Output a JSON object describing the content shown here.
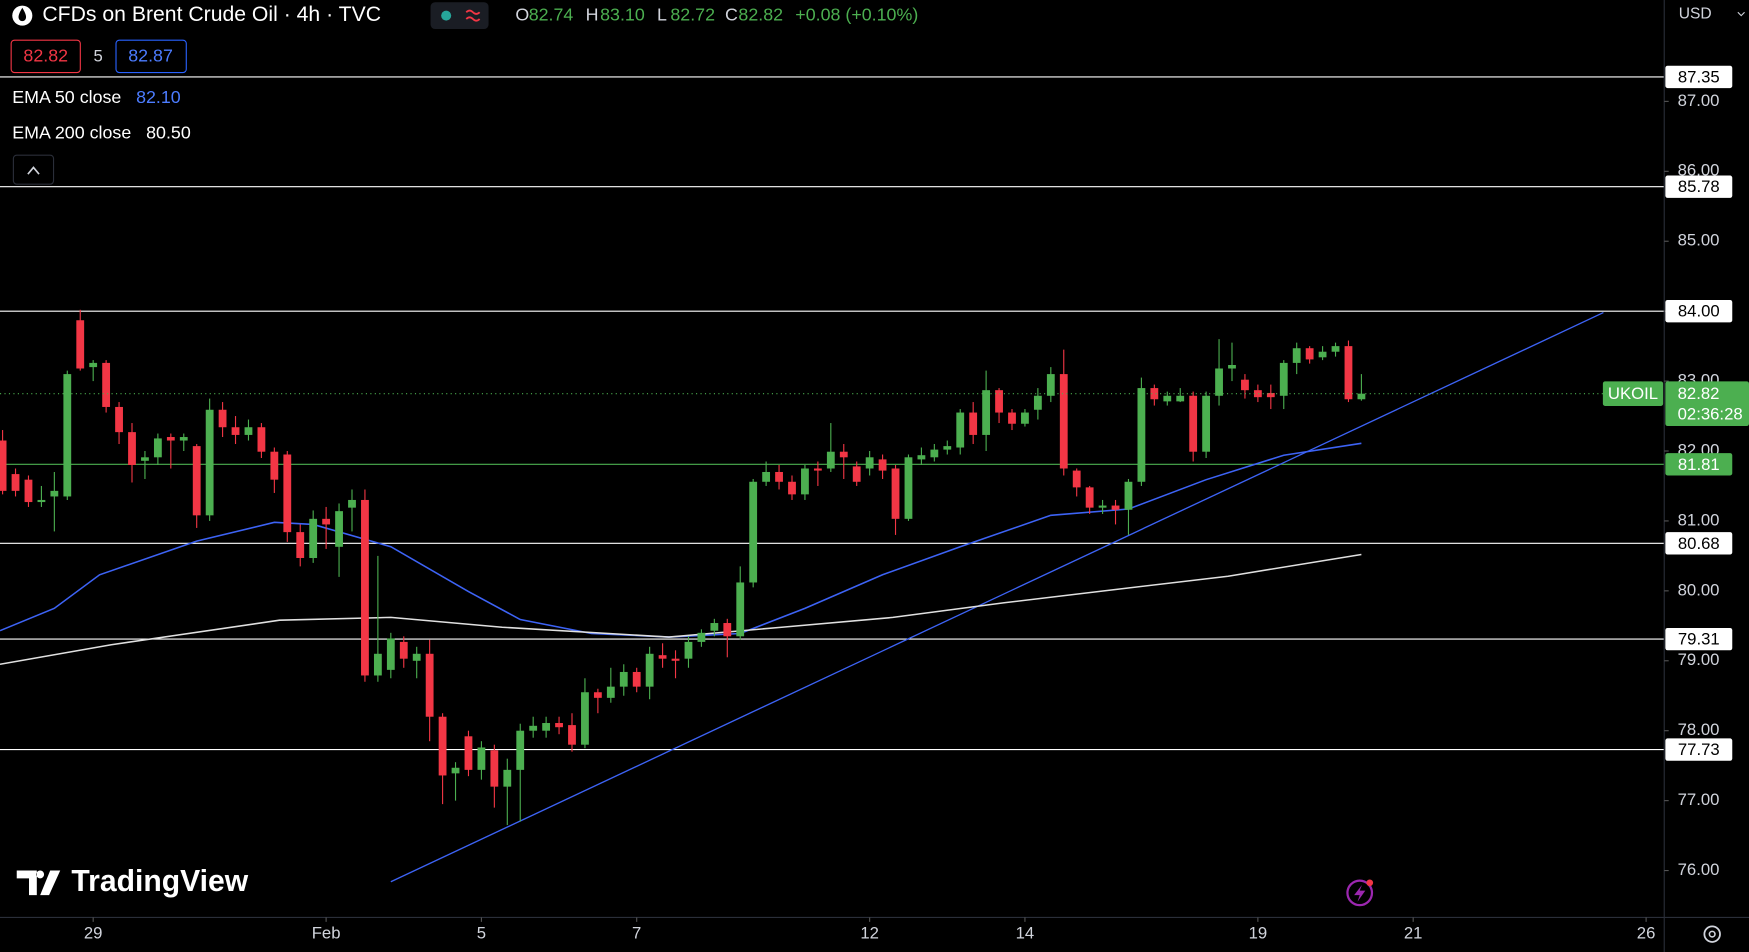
{
  "chart_data": {
    "type": "candlestick",
    "header": {
      "title": "CFDs on Brent Crude Oil · 4h · TVC",
      "ohlc_letters": [
        "O",
        "H",
        "L",
        "C"
      ],
      "ohlc": [
        "82.74",
        "83.10",
        "82.72",
        "82.82"
      ],
      "change": "+0.08 (+0.10%)"
    },
    "bid": "82.82",
    "spread": "5",
    "ask": "82.87",
    "currency": "USD",
    "watermark": "TradingView",
    "up_color": "#4caf50",
    "down_color": "#f23645",
    "x": [
      0,
      1,
      2,
      3,
      4,
      5,
      6,
      7,
      8,
      9,
      10,
      11,
      12,
      13,
      14,
      15,
      16,
      17,
      18,
      19,
      20,
      21,
      22,
      23,
      24,
      25,
      26,
      27,
      28,
      29,
      30,
      31,
      32,
      33,
      34,
      35,
      36,
      37,
      38,
      39,
      40,
      41,
      42,
      43,
      44,
      45,
      46,
      47,
      48,
      49,
      50,
      51,
      52,
      53,
      54,
      55,
      56,
      57,
      58,
      59,
      60,
      61,
      62,
      63,
      64,
      65,
      66,
      67,
      68,
      69,
      70,
      71,
      72,
      73,
      74,
      75,
      76,
      77,
      78,
      79,
      80,
      81,
      82,
      83,
      84,
      85,
      86,
      87,
      88,
      89,
      90,
      91,
      92,
      93,
      94,
      95,
      96,
      97,
      98,
      99,
      100,
      101,
      102,
      103,
      104,
      105
    ],
    "open": [
      82.15,
      81.67,
      81.59,
      81.27,
      81.35,
      81.35,
      83.87,
      83.2,
      83.26,
      82.63,
      82.27,
      81.86,
      81.91,
      82.2,
      82.15,
      82.07,
      81.08,
      82.59,
      82.34,
      82.23,
      82.34,
      81.99,
      81.95,
      80.84,
      80.47,
      81.03,
      80.63,
      81.19,
      81.3,
      78.79,
      78.87,
      79.27,
      79.0,
      79.1,
      78.2,
      77.39,
      77.92,
      77.44,
      77.72,
      77.2,
      77.44,
      78.0,
      78.0,
      78.11,
      78.08,
      77.8,
      78.55,
      78.47,
      78.63,
      78.84,
      78.63,
      79.08,
      79.03,
      79.03,
      79.27,
      79.43,
      79.54,
      79.35,
      80.12,
      81.56,
      81.7,
      81.56,
      81.38,
      81.75,
      81.75,
      81.99,
      81.78,
      81.75,
      81.88,
      81.75,
      81.03,
      81.88,
      81.91,
      82.02,
      82.05,
      82.55,
      82.23,
      82.87,
      82.55,
      82.39,
      82.59,
      82.79,
      83.1,
      81.72,
      81.48,
      81.19,
      81.22,
      81.16,
      81.56,
      82.9,
      82.71,
      82.71,
      82.79,
      81.99,
      82.79,
      83.18,
      83.02,
      82.87,
      82.83,
      82.79,
      83.26,
      83.47,
      83.34,
      83.42,
      83.5,
      82.74
    ],
    "high": [
      82.3,
      81.75,
      81.65,
      81.5,
      81.7,
      83.15,
      84.02,
      83.3,
      83.3,
      82.7,
      82.4,
      82.0,
      82.25,
      82.25,
      82.25,
      82.1,
      82.75,
      82.7,
      82.5,
      82.45,
      82.4,
      82.05,
      82.0,
      80.95,
      81.15,
      81.2,
      81.25,
      81.45,
      81.45,
      80.5,
      79.4,
      79.35,
      79.2,
      79.3,
      78.25,
      77.55,
      78.0,
      77.85,
      77.8,
      77.6,
      78.1,
      78.2,
      78.2,
      78.2,
      78.25,
      78.75,
      78.6,
      78.9,
      78.95,
      78.9,
      79.2,
      79.25,
      79.15,
      79.35,
      79.45,
      79.6,
      79.6,
      80.35,
      81.6,
      81.85,
      81.8,
      81.65,
      81.8,
      81.85,
      82.4,
      82.1,
      81.85,
      82.0,
      81.95,
      81.8,
      81.95,
      82.05,
      82.1,
      82.15,
      82.6,
      82.7,
      83.15,
      82.9,
      82.6,
      82.6,
      82.9,
      83.2,
      83.45,
      81.75,
      81.5,
      81.3,
      81.3,
      81.6,
      83.05,
      82.95,
      82.85,
      82.9,
      82.85,
      82.85,
      83.6,
      83.55,
      83.1,
      82.95,
      82.95,
      83.3,
      83.55,
      83.5,
      83.5,
      83.55,
      83.58,
      83.1
    ],
    "low": [
      81.38,
      81.35,
      81.2,
      81.2,
      80.85,
      81.3,
      83.15,
      83.0,
      82.55,
      82.1,
      81.55,
      81.6,
      81.8,
      81.75,
      82.0,
      80.9,
      81.0,
      82.2,
      82.1,
      82.15,
      81.9,
      81.4,
      80.7,
      80.35,
      80.4,
      80.6,
      80.2,
      80.85,
      78.7,
      78.7,
      78.75,
      78.9,
      78.75,
      77.85,
      76.95,
      77.0,
      77.35,
      77.3,
      76.9,
      76.65,
      76.7,
      77.9,
      77.9,
      77.95,
      77.7,
      77.75,
      78.25,
      78.4,
      78.5,
      78.55,
      78.45,
      78.9,
      78.75,
      78.9,
      79.2,
      79.35,
      79.05,
      79.3,
      80.05,
      81.5,
      81.45,
      81.3,
      81.3,
      81.5,
      81.7,
      81.6,
      81.5,
      81.65,
      81.6,
      80.8,
      81.0,
      81.8,
      81.85,
      81.95,
      81.95,
      82.1,
      82.0,
      82.4,
      82.3,
      82.35,
      82.45,
      82.7,
      81.65,
      81.35,
      81.1,
      81.1,
      80.95,
      80.8,
      81.5,
      82.65,
      82.65,
      82.7,
      81.85,
      81.9,
      82.65,
      83.0,
      82.75,
      82.7,
      82.6,
      82.6,
      83.1,
      83.25,
      83.3,
      83.35,
      82.7,
      82.72
    ],
    "close": [
      81.43,
      81.43,
      81.27,
      81.3,
      81.43,
      83.1,
      83.18,
      83.26,
      82.63,
      82.27,
      81.8,
      81.91,
      82.18,
      82.15,
      82.2,
      81.08,
      82.59,
      82.34,
      82.23,
      82.34,
      81.99,
      81.59,
      80.84,
      80.47,
      81.03,
      80.95,
      81.14,
      81.3,
      78.79,
      79.1,
      79.32,
      79.03,
      79.1,
      78.2,
      77.36,
      77.47,
      77.44,
      77.76,
      77.2,
      77.44,
      78.0,
      78.07,
      78.11,
      78.05,
      77.8,
      78.55,
      78.47,
      78.63,
      78.84,
      78.63,
      79.1,
      79.03,
      79.0,
      79.27,
      79.4,
      79.54,
      79.35,
      80.12,
      81.56,
      81.7,
      81.56,
      81.38,
      81.75,
      81.72,
      81.99,
      81.91,
      81.56,
      81.91,
      81.72,
      81.03,
      81.91,
      81.94,
      82.02,
      82.07,
      82.55,
      82.23,
      82.87,
      82.55,
      82.39,
      82.55,
      82.79,
      83.1,
      81.75,
      81.48,
      81.19,
      81.22,
      81.16,
      81.56,
      82.9,
      82.74,
      82.79,
      82.79,
      81.99,
      82.79,
      83.18,
      83.23,
      82.87,
      82.77,
      82.77,
      83.26,
      83.47,
      83.31,
      83.42,
      83.5,
      82.74,
      82.82
    ],
    "lines": [
      {
        "name": "EMA 50 close",
        "last": "82.10",
        "color": "#3d63f5",
        "x": [
          -0.2,
          4,
          7.5,
          15,
          21,
          24,
          30,
          36,
          40,
          45.5,
          51.5,
          57,
          62,
          68,
          74,
          81,
          87,
          93,
          99,
          105
        ],
        "values": [
          79.43,
          79.75,
          80.23,
          80.71,
          80.98,
          80.95,
          80.63,
          79.99,
          79.59,
          79.39,
          79.34,
          79.39,
          79.75,
          80.23,
          80.63,
          81.08,
          81.17,
          81.59,
          81.94,
          82.11
        ]
      },
      {
        "name": "EMA 200 close",
        "last": "80.50",
        "color": "#e0e0e0",
        "x": [
          -0.2,
          8.4,
          21.4,
          30,
          38.6,
          51.5,
          60.2,
          68.8,
          77.4,
          86,
          94.7,
          105
        ],
        "values": [
          78.95,
          79.23,
          79.58,
          79.62,
          79.48,
          79.34,
          79.48,
          79.62,
          79.83,
          80.02,
          80.21,
          80.52
        ]
      }
    ],
    "trendline": {
      "color": "#3d63f5",
      "x": [
        30,
        123.7
      ],
      "values": [
        75.84,
        83.98
      ]
    },
    "levels": [
      {
        "value": 87.35,
        "label": "87.35",
        "color": "#ffffff"
      },
      {
        "value": 85.78,
        "label": "85.78",
        "color": "#ffffff"
      },
      {
        "value": 84,
        "label": "84.00",
        "color": "#ffffff"
      },
      {
        "value": 81.81,
        "label": "81.81",
        "color": "#4caf50"
      },
      {
        "value": 80.68,
        "label": "80.68",
        "color": "#ffffff"
      },
      {
        "value": 79.31,
        "label": "79.31",
        "color": "#ffffff"
      },
      {
        "value": 77.73,
        "label": "77.73",
        "color": "#ffffff"
      }
    ],
    "last_price": {
      "value": 82.82,
      "label": "82.82",
      "symbol": "UKOIL",
      "countdown": "02:36:28",
      "color": "#4caf50"
    },
    "xlim": [
      -0.2,
      128.4
    ],
    "ylim": [
      75.33,
      88.45
    ],
    "yticks": [
      {
        "value": 76,
        "label": "76.00"
      },
      {
        "value": 77,
        "label": "77.00"
      },
      {
        "value": 78,
        "label": "78.00"
      },
      {
        "value": 79,
        "label": "79.00"
      },
      {
        "value": 80,
        "label": "80.00"
      },
      {
        "value": 81,
        "label": "81.00"
      },
      {
        "value": 82,
        "label": "82.00"
      },
      {
        "value": 83,
        "label": "83.00"
      },
      {
        "value": 84,
        "label": "84.00"
      },
      {
        "value": 85,
        "label": "85.00"
      },
      {
        "value": 86,
        "label": "86.00"
      },
      {
        "value": 87,
        "label": "87.00"
      }
    ],
    "xticks": [
      {
        "value": 7,
        "label": "29"
      },
      {
        "value": 25,
        "label": "Feb"
      },
      {
        "value": 37,
        "label": "5"
      },
      {
        "value": 49,
        "label": "7"
      },
      {
        "value": 67,
        "label": "12"
      },
      {
        "value": 79,
        "label": "14"
      },
      {
        "value": 97,
        "label": "19"
      },
      {
        "value": 109,
        "label": "21"
      },
      {
        "value": 127,
        "label": "26"
      }
    ]
  }
}
